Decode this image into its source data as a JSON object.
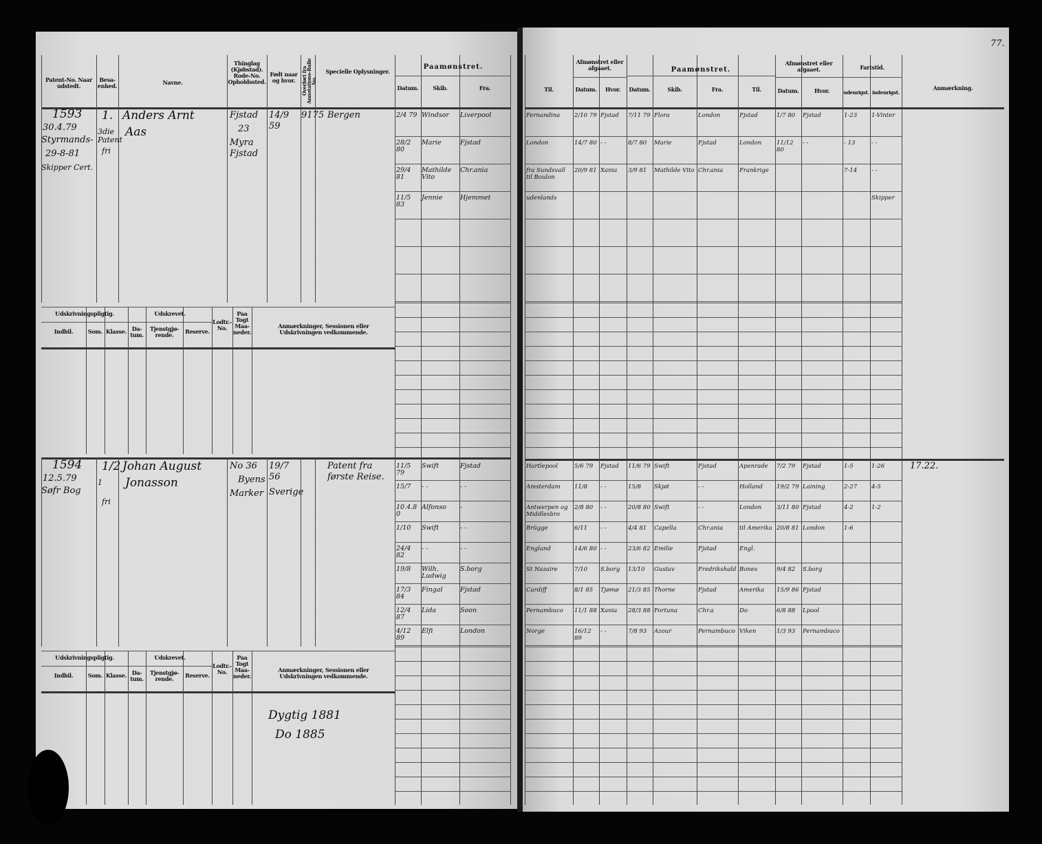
{
  "page_number": "77.",
  "left_header": {
    "patent": "Patent-No. Naar udstedt.",
    "besaetning": "Besa-enhed.",
    "navne": "Navne.",
    "thinglag": "Thinglag (Kjøbstad). Rode-No. Opholdssted.",
    "fodt": "Født naar og hvor.",
    "overfort": "Overført fra Annotations-Rulle No.",
    "speciel": "Specielle Oplysninger.",
    "paamonstret": "Paamønstret.",
    "datum": "Datum.",
    "skib": "Skib.",
    "fra": "Fra."
  },
  "right_header": {
    "til": "Til.",
    "afmonstret": "Afmønstret eller afgaaet.",
    "datum": "Datum.",
    "hvor": "Hvor.",
    "paamonstret": "Paamønstret.",
    "skib": "Skib.",
    "fra": "Fra.",
    "fartstid": "Fartstid.",
    "udenrigs": "udenrigst.",
    "indenrigs": "indenrigst.",
    "anmaerkning": "Anmærkning."
  },
  "conscription_header": {
    "pligtig": "Udskrivningspligtig.",
    "udskrevet": "Udskrevet.",
    "indbil": "Indbil.",
    "som": "Som.",
    "klasse": "Klasse.",
    "datum": "Da-tum.",
    "tjeneste": "Tjenstgjø-rende.",
    "reserve": "Reserve.",
    "lodtr": "Lodtr.-No.",
    "togt": "Paa Togt Maa-neder.",
    "anm": "Anmærkninger, Sessionen eller Udskrivningen vedkommende."
  },
  "entries": [
    {
      "patent_no": "1593",
      "issued": "30.4.79",
      "patent_note_1": "Styrmands-",
      "patent_note_2": "29-8-81",
      "patent_note_3": "Skipper Cert.",
      "besaetning": "1.",
      "besaetning_note_1": "3die Patent",
      "besaetning_note_2": "fri",
      "name_1": "Anders Arnt",
      "name_2": "Aas",
      "thinglag_1": "Fjstad",
      "thinglag_2": "23",
      "thinglag_3": "Myra Fjstad",
      "fodt": "14/9 59",
      "overfort": "9175",
      "speciel": "Bergen",
      "anmaerkning": "",
      "conscription_remarks": [],
      "voyages_left": [
        [
          "2/4 79",
          "Windsor",
          "Liverpool"
        ],
        [
          "28/2 80",
          "Marie",
          "Fjstad"
        ],
        [
          "29/4 81",
          "Mathilde Vito",
          "Chr.ania"
        ],
        [
          "11/5 83",
          "Jennie",
          "Hjemmet"
        ]
      ],
      "voyages_right": [
        [
          "Fernandina",
          "2/10 79",
          "Fjstad",
          "7/11 79",
          "Flora",
          "London",
          "Fjstad",
          "1/7 80",
          "Fjstad",
          "1-23",
          "1-Vinter"
        ],
        [
          "London",
          "14/7 80",
          "- -",
          "8/7 80",
          "Marie",
          "Fjstad",
          "London",
          "11/12 80",
          "- -",
          "- 13",
          "- -"
        ],
        [
          "fra Sundsvall til Boulon",
          "20/9 81",
          "Xania",
          "3/9 81",
          "Mathilde Vito",
          "Chr.ania",
          "Frankrige",
          "",
          "",
          "7-14",
          "- -"
        ],
        [
          "udenlands",
          "",
          "",
          "",
          "",
          "",
          "",
          "",
          "",
          "",
          "Skipper"
        ]
      ]
    },
    {
      "patent_no": "1594",
      "issued": "12.5.79",
      "patent_note_1": "Søfr Bog",
      "patent_note_2": "",
      "patent_note_3": "",
      "besaetning": "1/2",
      "besaetning_note_1": "1",
      "besaetning_note_2": "fri",
      "name_1": "Johan August",
      "name_2": "Jonasson",
      "thinglag_1": "No 36",
      "thinglag_2": "Byens",
      "thinglag_3": "Marker",
      "fodt": "19/7 56",
      "fodt_2": "Sverige",
      "overfort": "",
      "speciel": "Patent fra første Reise.",
      "anmaerkning": "17.22.",
      "conscription_remarks": [
        "Dygtig 1881",
        "Do 1885"
      ],
      "voyages_left": [
        [
          "11/5 79",
          "Swift",
          "Fjstad"
        ],
        [
          "15/7",
          "- -",
          "- -"
        ],
        [
          "10.4.80",
          "Alfonso",
          "-"
        ],
        [
          "1/10",
          "Swift",
          "- -"
        ],
        [
          "24/4 82",
          "- -",
          "- -"
        ],
        [
          "19/8",
          "Wilh. Ludwig",
          "S.borg"
        ],
        [
          "17/3 84",
          "Fingal",
          "Fjstad"
        ],
        [
          "12/4 87",
          "Lida",
          "Soon"
        ],
        [
          "4/12 89",
          "Elfi",
          "London"
        ]
      ],
      "voyages_right": [
        [
          "Hartlepool",
          "5/6 79",
          "Fjstad",
          "11/6 79",
          "Swift",
          "Fjstad",
          "Apenrade",
          "7/2 79",
          "Fjstad",
          "1-5",
          "1-26"
        ],
        [
          "Amsterdam",
          "11/8",
          "- -",
          "15/8",
          "Skjøt",
          "- -",
          "Holland",
          "19/2 79",
          "Laining",
          "2-27",
          "4-5"
        ],
        [
          "Antwerpen og Middlesbro",
          "2/8 80",
          "- -",
          "20/8 80",
          "Swift",
          "- -",
          "London",
          "3/11 80",
          "Fjstad",
          "4-2",
          "1-2"
        ],
        [
          "Brügge",
          "6/11",
          "- -",
          "4/4 81",
          "Capella",
          "Chr.ania",
          "til Amerika",
          "20/8 81",
          "London",
          "1-6",
          ""
        ],
        [
          "England",
          "14/6 80",
          "- -",
          "23/6 82",
          "Emilie",
          "Fjstad",
          "Engl.",
          "",
          "",
          "",
          ""
        ],
        [
          "St Nazaire",
          "7/10",
          "S.borg",
          "13/10",
          "Gustav",
          "Fredrikshald",
          "Bones",
          "9/4 82",
          "S.borg",
          "",
          ""
        ],
        [
          "Cardiff",
          "8/1 85",
          "Tjømø",
          "21/3 85",
          "Thorne",
          "Fjstad",
          "Amerika",
          "15/9 86",
          "Fjstad",
          "",
          ""
        ],
        [
          "Pernambuco",
          "11/1 88",
          "Xania",
          "28/3 88",
          "Fortuna",
          "Chr.a",
          "Do",
          "6/8 88",
          "Lpool",
          "",
          ""
        ],
        [
          "Norge",
          "16/12 89",
          "- -",
          "7/8 93",
          "Azour",
          "Pernambuco",
          "Viken",
          "1/3 93",
          "Pernambuco",
          "",
          ""
        ]
      ]
    }
  ]
}
